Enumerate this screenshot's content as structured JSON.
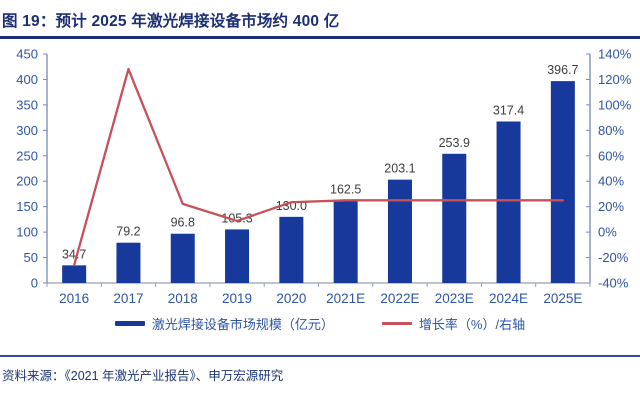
{
  "figure": {
    "title": "图 19：预计 2025 年激光焊接设备市场约 400 亿",
    "source": "资料来源：《2021 年激光产业报告》、申万宏源研究"
  },
  "legend": {
    "bars": "激光焊接设备市场规模（亿元）",
    "line": "增长率（%）/右轴"
  },
  "colors": {
    "bar": "#17399c",
    "line": "#c8505a",
    "axis_text": "#2f55a4",
    "axis_line_vertical": "#7488bd",
    "axis_line_bottom": "#98a0b0",
    "data_label": "#3d3d3d",
    "title": "#1b2f72"
  },
  "chart_data": {
    "type": "bar",
    "subtype": "bar+line combo, dual axis",
    "title": "预计 2025 年激光焊接设备市场约 400 亿",
    "categories": [
      "2016",
      "2017",
      "2018",
      "2019",
      "2020",
      "2021E",
      "2022E",
      "2023E",
      "2024E",
      "2025E"
    ],
    "series": [
      {
        "name": "激光焊接设备市场规模（亿元）",
        "type": "bar",
        "axis": "left",
        "values": [
          34.7,
          79.2,
          96.8,
          105.3,
          130.0,
          162.5,
          203.1,
          253.9,
          317.4,
          396.7
        ],
        "labels": [
          "34.7",
          "79.2",
          "96.8",
          "105.3",
          "130.0",
          "162.5",
          "203.1",
          "253.9",
          "317.4",
          "396.7"
        ]
      },
      {
        "name": "增长率（%）/右轴",
        "type": "line",
        "axis": "right",
        "values": [
          -26,
          128.2,
          22.2,
          8.8,
          23.5,
          25.0,
          25.0,
          25.0,
          25.0,
          25.0
        ]
      }
    ],
    "y_left": {
      "min": 0,
      "max": 450,
      "step": 50,
      "suffix": ""
    },
    "y_right": {
      "min": -40,
      "max": 140,
      "step": 20,
      "suffix": "%"
    },
    "grid": false,
    "legend_position": "bottom",
    "notes": "bar value labels shown above bars with one decimal"
  }
}
